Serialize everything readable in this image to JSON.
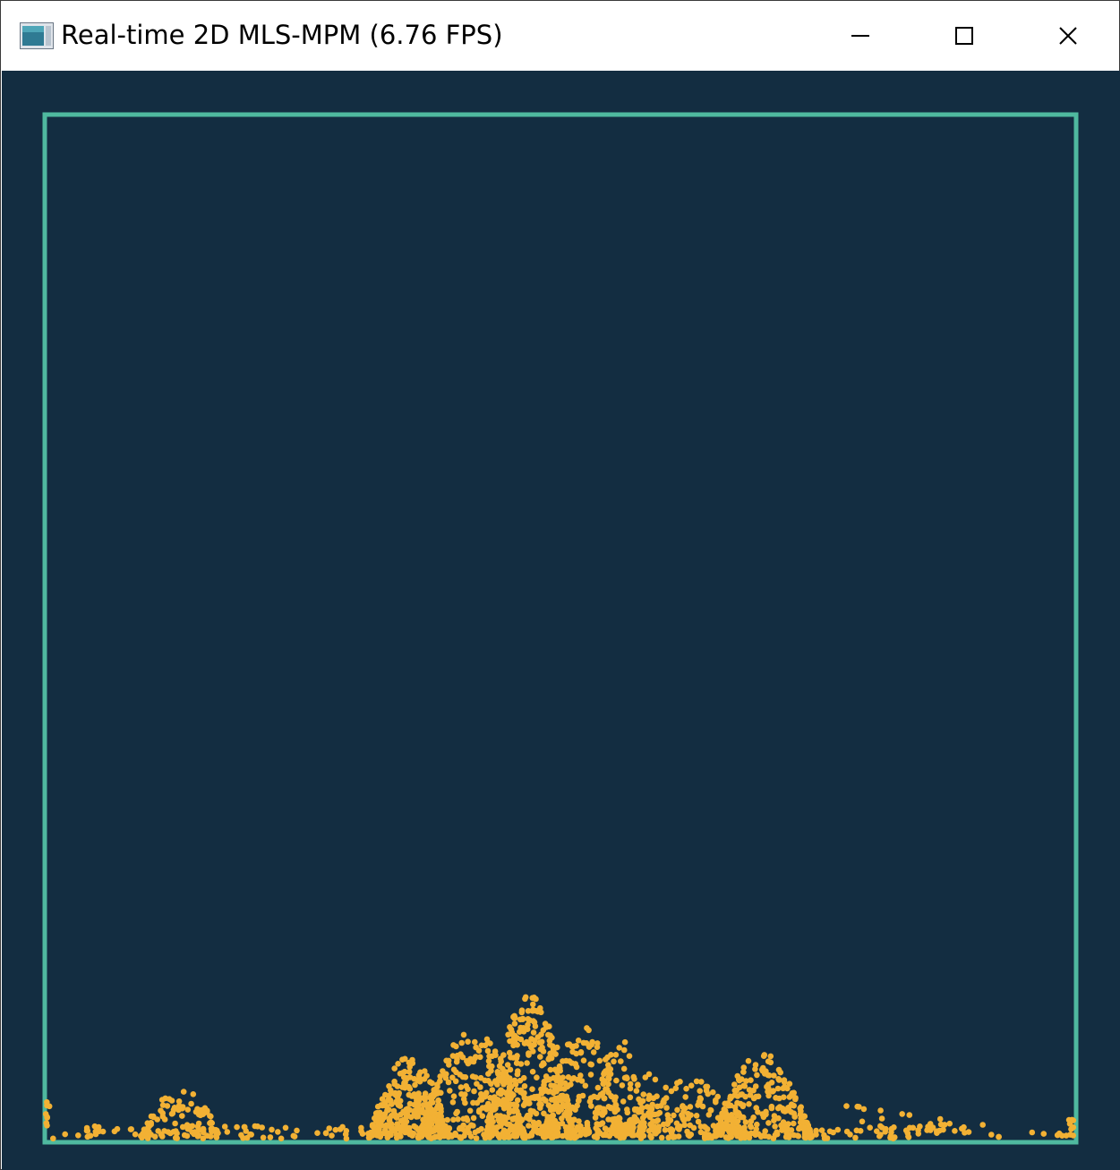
{
  "window": {
    "title": "Real-time 2D MLS-MPM (6.76 FPS)",
    "controls": {
      "minimize_icon": "minimize-icon",
      "maximize_icon": "maximize-icon",
      "close_icon": "close-icon"
    }
  },
  "scene": {
    "background_color": "#132d41",
    "boundary_color": "#4fb99f",
    "particle_color": "#f2b134"
  }
}
